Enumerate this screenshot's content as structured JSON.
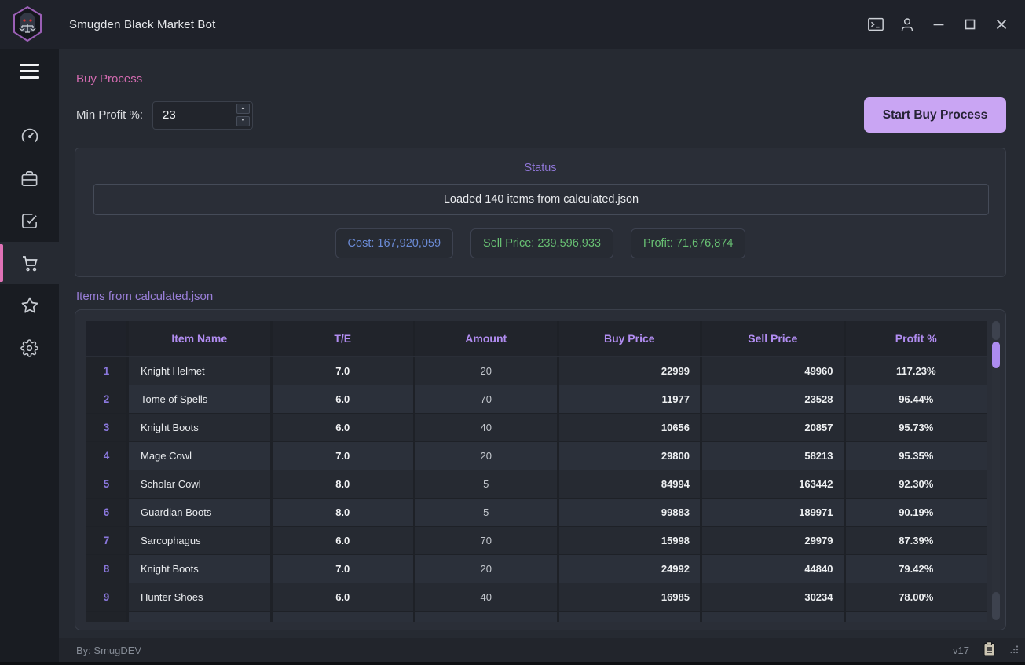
{
  "titlebar": {
    "title": "Smugden Black Market Bot",
    "buttons": [
      "terminal-icon",
      "user-icon",
      "minimize-icon",
      "maximize-icon",
      "close-icon"
    ]
  },
  "sidebar": {
    "menu_icon": "hamburger-icon",
    "items": [
      {
        "icon": "dashboard-icon",
        "active": false
      },
      {
        "icon": "briefcase-icon",
        "active": false
      },
      {
        "icon": "tasks-check-icon",
        "active": false
      },
      {
        "icon": "cart-icon",
        "active": true
      },
      {
        "icon": "star-icon",
        "active": false
      },
      {
        "icon": "settings-gear-icon",
        "active": false
      }
    ],
    "active_accent": "#df72b6"
  },
  "buy_process": {
    "heading": "Buy Process",
    "min_profit_label": "Min Profit %:",
    "min_profit_value": "23",
    "spinner_up": "▲",
    "spinner_down": "▼",
    "start_button": "Start Buy Process"
  },
  "status": {
    "title": "Status",
    "message": "Loaded 140 items from calculated.json",
    "stats": [
      {
        "label": "Cost: 167,920,059",
        "color": "#6b8bd6"
      },
      {
        "label": "Sell Price: 239,596,933",
        "color": "#68c073"
      },
      {
        "label": "Profit: 71,676,874",
        "color": "#68c073"
      }
    ]
  },
  "items_section": {
    "heading": "Items from calculated.json",
    "table": {
      "columns": [
        "Item Name",
        "T/E",
        "Amount",
        "Buy Price",
        "Sell Price",
        "Profit %"
      ],
      "rows": [
        {
          "num": "1",
          "name": "Knight Helmet",
          "te": "7.0",
          "amount": "20",
          "buy": "22999",
          "sell": "49960",
          "profit": "117.23%"
        },
        {
          "num": "2",
          "name": "Tome of Spells",
          "te": "6.0",
          "amount": "70",
          "buy": "11977",
          "sell": "23528",
          "profit": "96.44%"
        },
        {
          "num": "3",
          "name": "Knight Boots",
          "te": "6.0",
          "amount": "40",
          "buy": "10656",
          "sell": "20857",
          "profit": "95.73%"
        },
        {
          "num": "4",
          "name": "Mage Cowl",
          "te": "7.0",
          "amount": "20",
          "buy": "29800",
          "sell": "58213",
          "profit": "95.35%"
        },
        {
          "num": "5",
          "name": "Scholar Cowl",
          "te": "8.0",
          "amount": "5",
          "buy": "84994",
          "sell": "163442",
          "profit": "92.30%"
        },
        {
          "num": "6",
          "name": "Guardian Boots",
          "te": "8.0",
          "amount": "5",
          "buy": "99883",
          "sell": "189971",
          "profit": "90.19%"
        },
        {
          "num": "7",
          "name": "Sarcophagus",
          "te": "6.0",
          "amount": "70",
          "buy": "15998",
          "sell": "29979",
          "profit": "87.39%"
        },
        {
          "num": "8",
          "name": "Knight Boots",
          "te": "7.0",
          "amount": "20",
          "buy": "24992",
          "sell": "44840",
          "profit": "79.42%"
        },
        {
          "num": "9",
          "name": "Hunter Shoes",
          "te": "6.0",
          "amount": "40",
          "buy": "16985",
          "sell": "30234",
          "profit": "78.00%"
        }
      ]
    }
  },
  "footer": {
    "author": "By: SmugDEV",
    "version": "v17",
    "icons": [
      "clipboard-icon",
      "resize-grip-icon"
    ]
  },
  "colors": {
    "accent_pink": "#d36bb0",
    "accent_purple": "#b28df2",
    "button_purple": "#c9a5f3",
    "scrollbar_thumb": "#ad8cf0"
  }
}
